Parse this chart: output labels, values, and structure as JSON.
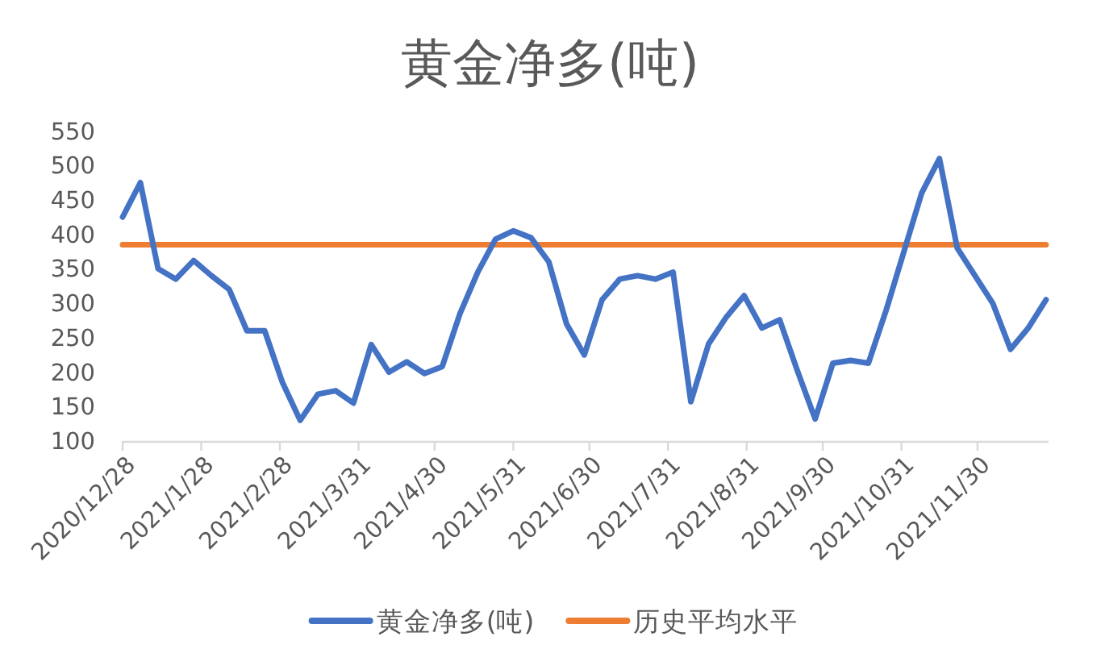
{
  "chart_data": {
    "type": "line",
    "title": "黄金净多(吨)",
    "x": [
      "2020-12-28",
      "2021-01-04",
      "2021-01-11",
      "2021-01-18",
      "2021-01-25",
      "2021-02-01",
      "2021-02-08",
      "2021-02-15",
      "2021-02-22",
      "2021-03-01",
      "2021-03-08",
      "2021-03-15",
      "2021-03-22",
      "2021-03-29",
      "2021-04-05",
      "2021-04-12",
      "2021-04-19",
      "2021-04-26",
      "2021-05-03",
      "2021-05-10",
      "2021-05-17",
      "2021-05-24",
      "2021-05-31",
      "2021-06-07",
      "2021-06-14",
      "2021-06-21",
      "2021-06-28",
      "2021-07-05",
      "2021-07-12",
      "2021-07-19",
      "2021-07-26",
      "2021-08-02",
      "2021-08-09",
      "2021-08-16",
      "2021-08-23",
      "2021-08-30",
      "2021-09-06",
      "2021-09-13",
      "2021-09-20",
      "2021-09-27",
      "2021-10-04",
      "2021-10-11",
      "2021-10-18",
      "2021-10-25",
      "2021-11-01",
      "2021-11-08",
      "2021-11-15",
      "2021-11-22",
      "2021-11-29",
      "2021-12-06",
      "2021-12-13",
      "2021-12-20",
      "2021-12-27"
    ],
    "xlim": [
      "2020-12-28",
      "2021-12-28"
    ],
    "xticks": [
      {
        "value": "2020-12-28",
        "label": "2020/12/28"
      },
      {
        "value": "2021-01-28",
        "label": "2021/1/28"
      },
      {
        "value": "2021-02-28",
        "label": "2021/2/28"
      },
      {
        "value": "2021-03-31",
        "label": "2021/3/31"
      },
      {
        "value": "2021-04-30",
        "label": "2021/4/30"
      },
      {
        "value": "2021-05-31",
        "label": "2021/5/31"
      },
      {
        "value": "2021-06-30",
        "label": "2021/6/30"
      },
      {
        "value": "2021-07-31",
        "label": "2021/7/31"
      },
      {
        "value": "2021-08-31",
        "label": "2021/8/31"
      },
      {
        "value": "2021-09-30",
        "label": "2021/9/30"
      },
      {
        "value": "2021-10-31",
        "label": "2021/10/31"
      },
      {
        "value": "2021-11-30",
        "label": "2021/11/30"
      }
    ],
    "ylim": [
      100,
      550
    ],
    "yticks": [
      100,
      150,
      200,
      250,
      300,
      350,
      400,
      450,
      500,
      550
    ],
    "legend": "bottom",
    "series": [
      {
        "name": "黄金净多(吨)",
        "color": "#4472c4",
        "values": [
          425,
          475,
          350,
          335,
          362,
          340,
          320,
          260,
          260,
          185,
          130,
          168,
          173,
          155,
          240,
          200,
          215,
          198,
          208,
          285,
          345,
          393,
          405,
          395,
          360,
          270,
          225,
          305,
          335,
          340,
          335,
          345,
          157,
          241,
          280,
          311,
          264,
          276,
          202,
          132,
          213,
          217,
          213,
          290,
          375,
          460,
          510,
          380,
          340,
          300,
          233,
          264,
          305
        ]
      },
      {
        "name": "历史平均水平",
        "color": "#ed7d31",
        "x": [
          "2020-12-28",
          "2021-12-27"
        ],
        "values": [
          385,
          385
        ]
      }
    ]
  }
}
